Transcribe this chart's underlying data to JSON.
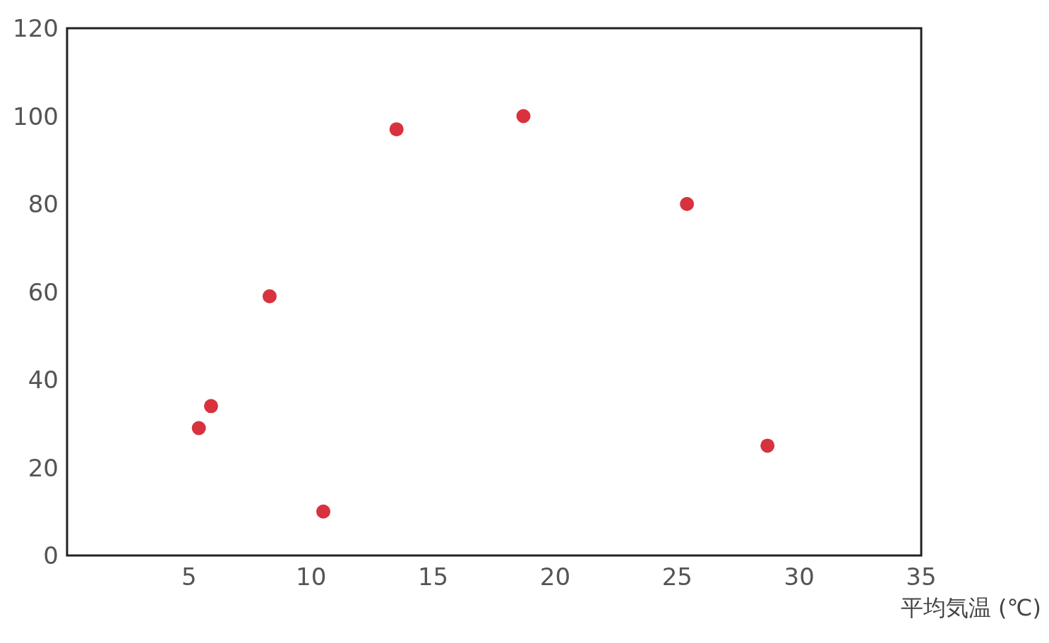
{
  "chart_data": {
    "type": "scatter",
    "xlabel": "平均気温 (℃)",
    "x": [
      5.4,
      5.9,
      8.3,
      10.5,
      13.5,
      18.7,
      25.4,
      28.7
    ],
    "values": [
      29,
      34,
      59,
      10,
      97,
      100,
      80,
      25
    ],
    "color": "#d8323e",
    "marker": "circle",
    "xlim": [
      0,
      35
    ],
    "ylim": [
      0,
      120
    ],
    "xticks": [
      5,
      10,
      15,
      20,
      25,
      30,
      35
    ],
    "yticks": [
      0,
      20,
      40,
      60,
      80,
      100,
      120
    ]
  }
}
